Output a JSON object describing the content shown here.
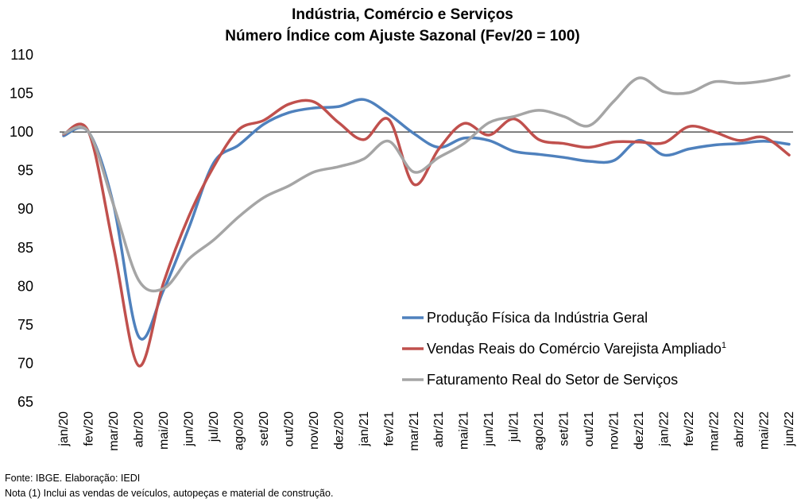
{
  "chart_data": {
    "type": "line",
    "title": "Indústria, Comércio e Serviços",
    "subtitle": "Número Índice com Ajuste Sazonal (Fev/20 = 100)",
    "xlabel": "",
    "ylabel": "",
    "ylim": [
      65,
      110
    ],
    "yticks": [
      "65",
      "70",
      "75",
      "80",
      "85",
      "90",
      "95",
      "100",
      "105",
      "110"
    ],
    "categories": [
      "jan/20",
      "fev/20",
      "mar/20",
      "abr/20",
      "mai/20",
      "jun/20",
      "jul/20",
      "ago/20",
      "set/20",
      "out/20",
      "nov/20",
      "dez/20",
      "jan/21",
      "fev/21",
      "mar/21",
      "abr/21",
      "mai/21",
      "jun/21",
      "jul/21",
      "ago/21",
      "set/21",
      "out/21",
      "nov/21",
      "dez/21",
      "jan/22",
      "fev/22",
      "mar/22",
      "abr/22",
      "mai/22",
      "jun/22"
    ],
    "reference_line": 100,
    "grid": false,
    "legend_position": "bottom-right",
    "series": [
      {
        "name": "Produção Física da Indústria Geral",
        "color": "#4F81BD",
        "values": [
          99.5,
          100.0,
          90.5,
          73.5,
          79.5,
          87.5,
          96.0,
          98.3,
          101.0,
          102.5,
          103.1,
          103.3,
          104.2,
          102.3,
          99.8,
          98.0,
          99.2,
          98.9,
          97.5,
          97.1,
          96.7,
          96.2,
          96.3,
          98.9,
          97.0,
          97.8,
          98.3,
          98.5,
          98.8,
          98.4
        ]
      },
      {
        "name": "Vendas Reais do Comércio Varejista Ampliado",
        "name_superscript": "1",
        "color": "#C0504D",
        "values": [
          99.7,
          100.0,
          85.0,
          69.7,
          80.5,
          89.0,
          95.5,
          100.3,
          101.5,
          103.6,
          103.9,
          101.2,
          99.0,
          101.6,
          93.2,
          97.8,
          101.1,
          99.6,
          101.7,
          99.0,
          98.5,
          98.0,
          98.7,
          98.7,
          98.6,
          100.7,
          100.0,
          98.9,
          99.3,
          97.0
        ]
      },
      {
        "name": "Faturamento Real do Setor de Serviços",
        "color": "#A5A5A5",
        "values": [
          99.8,
          100.0,
          90.5,
          80.8,
          79.7,
          83.5,
          86.0,
          89.0,
          91.5,
          93.0,
          94.8,
          95.5,
          96.5,
          98.8,
          94.8,
          96.7,
          98.5,
          101.2,
          102.0,
          102.8,
          102.0,
          100.8,
          104.0,
          107.0,
          105.2,
          105.1,
          106.5,
          106.3,
          106.6,
          107.3
        ]
      }
    ]
  },
  "notes": {
    "source": "Fonte: IBGE. Elaboração: IEDI",
    "footnote": "Nota (1) Inclui as vendas de veículos, autopeças e material de construção."
  }
}
